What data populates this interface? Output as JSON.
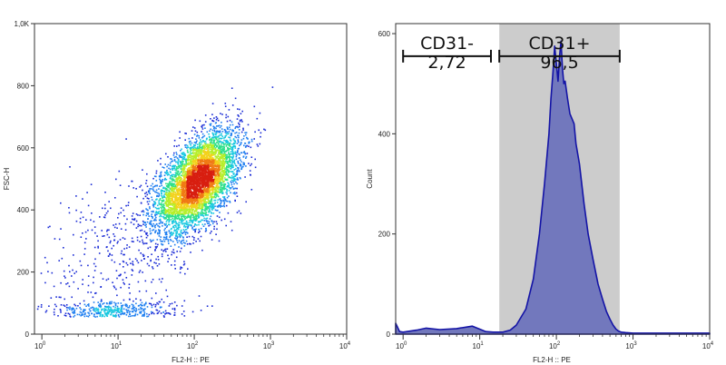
{
  "chart_data": [
    {
      "type": "scatter",
      "subtype": "density-dot-plot",
      "xlabel": "FL2-H :: PE",
      "ylabel": "FSC-H",
      "xscale": "log",
      "xlim": [
        0.8,
        10000
      ],
      "ylim": [
        0,
        1000
      ],
      "xticks": [
        {
          "value": 1,
          "base": "10",
          "exp": "0"
        },
        {
          "value": 10,
          "base": "10",
          "exp": "1"
        },
        {
          "value": 100,
          "base": "10",
          "exp": "2"
        },
        {
          "value": 1000,
          "base": "10",
          "exp": "3"
        },
        {
          "value": 10000,
          "base": "10",
          "exp": "4"
        }
      ],
      "yticks": [
        {
          "value": 0,
          "label": "0"
        },
        {
          "value": 200,
          "label": "200"
        },
        {
          "value": 400,
          "label": "400"
        },
        {
          "value": 600,
          "label": "600"
        },
        {
          "value": 800,
          "label": "800"
        },
        {
          "value": 1000,
          "label": "1,0K"
        }
      ],
      "populations": [
        {
          "center_x_log": 2.05,
          "center_y": 490,
          "sd_x_log": 0.27,
          "sd_y": 80,
          "corr": 0.55,
          "count": 5200
        },
        {
          "center_x_log": 0.9,
          "center_y": 72,
          "sd_x_log": 0.45,
          "sd_y": 18,
          "corr": 0.1,
          "count": 520
        },
        {
          "center_x_log": 1.1,
          "center_y": 280,
          "sd_x_log": 0.5,
          "sd_y": 130,
          "corr": 0.3,
          "count": 380
        }
      ],
      "colormap": [
        "#1a2bd6",
        "#1f7ff0",
        "#19c8e0",
        "#2fe08a",
        "#b6ee2a",
        "#f3d21c",
        "#f07a14",
        "#d81e10"
      ],
      "grid": false
    },
    {
      "type": "area",
      "subtype": "histogram",
      "xlabel": "FL2-H :: PE",
      "ylabel": "Count",
      "xscale": "log",
      "xlim": [
        0.8,
        10000
      ],
      "ylim": [
        0,
        620
      ],
      "xticks": [
        {
          "value": 1,
          "base": "10",
          "exp": "0"
        },
        {
          "value": 10,
          "base": "10",
          "exp": "1"
        },
        {
          "value": 100,
          "base": "10",
          "exp": "2"
        },
        {
          "value": 1000,
          "base": "10",
          "exp": "3"
        },
        {
          "value": 10000,
          "base": "10",
          "exp": "4"
        }
      ],
      "yticks": [
        {
          "value": 0,
          "label": "0"
        },
        {
          "value": 200,
          "label": "200"
        },
        {
          "value": 400,
          "label": "400"
        },
        {
          "value": 600,
          "label": "600"
        }
      ],
      "x": [
        0.8,
        0.9,
        1.0,
        1.5,
        2,
        3,
        5,
        8,
        10,
        12,
        15,
        20,
        25,
        30,
        40,
        50,
        60,
        70,
        80,
        85,
        90,
        95,
        100,
        105,
        110,
        115,
        120,
        125,
        130,
        140,
        150,
        160,
        170,
        180,
        200,
        230,
        260,
        300,
        350,
        400,
        450,
        500,
        550,
        600,
        650,
        700,
        800,
        1000,
        10000
      ],
      "y": [
        22,
        5,
        4,
        8,
        12,
        9,
        11,
        16,
        10,
        5,
        4,
        4,
        8,
        18,
        50,
        110,
        200,
        300,
        400,
        470,
        520,
        575,
        540,
        505,
        555,
        585,
        530,
        500,
        505,
        470,
        440,
        430,
        420,
        380,
        340,
        260,
        200,
        150,
        100,
        70,
        45,
        30,
        18,
        10,
        6,
        4,
        3,
        2,
        2
      ],
      "fill": "#7278bd",
      "line": "#1414a6",
      "gates": [
        {
          "name": "CD31-",
          "value": "2,72",
          "from": 1.0,
          "to": 14,
          "shaded": false
        },
        {
          "name": "CD31+",
          "value": "96,5",
          "from": 18,
          "to": 670,
          "shaded": true
        }
      ],
      "shade_color": "#cccccc"
    }
  ]
}
